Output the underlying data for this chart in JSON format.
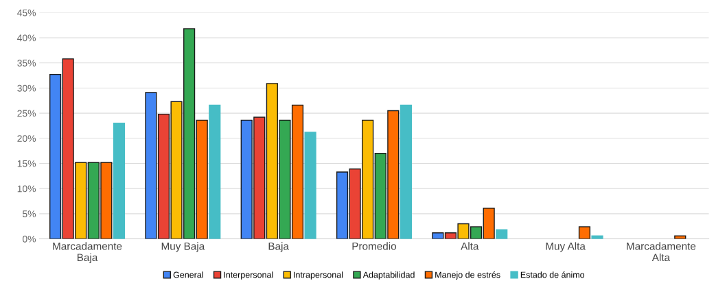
{
  "chart_data": {
    "type": "bar",
    "categories": [
      "Marcadamente\nBaja",
      "Muy Baja",
      "Baja",
      "Promedio",
      "Alta",
      "Muy Alta",
      "Marcadamente\nAlta"
    ],
    "series": [
      {
        "name": "General",
        "color": "#4285f4",
        "values": [
          32.7,
          29.1,
          23.6,
          13.3,
          1.2,
          0,
          0
        ]
      },
      {
        "name": "Interpersonal",
        "color": "#ea4335",
        "values": [
          35.8,
          24.8,
          24.2,
          13.9,
          1.2,
          0,
          0
        ]
      },
      {
        "name": "Intrapersonal",
        "color": "#fbbc04",
        "values": [
          15.2,
          27.3,
          30.9,
          23.6,
          3.0,
          0,
          0
        ]
      },
      {
        "name": "Adaptabilidad",
        "color": "#34a853",
        "values": [
          15.2,
          41.8,
          23.6,
          17.0,
          2.4,
          0,
          0
        ]
      },
      {
        "name": "Manejo de estrés",
        "color": "#ff6d01",
        "values": [
          15.2,
          23.6,
          26.6,
          25.5,
          6.1,
          2.4,
          0.6
        ]
      },
      {
        "name": "Estado de ánimo",
        "color": "#46bdc6",
        "values": [
          23.0,
          26.6,
          21.2,
          26.6,
          1.8,
          0.6,
          0
        ]
      }
    ],
    "ylim": [
      0,
      45
    ],
    "yticks": [
      {
        "value": 0,
        "label": "0%"
      },
      {
        "value": 5,
        "label": "5%"
      },
      {
        "value": 10,
        "label": "10%"
      },
      {
        "value": 15,
        "label": "15%"
      },
      {
        "value": 20,
        "label": "20%"
      },
      {
        "value": 25,
        "label": "25%"
      },
      {
        "value": 30,
        "label": "30%"
      },
      {
        "value": 35,
        "label": "35%"
      },
      {
        "value": 40,
        "label": "40%"
      },
      {
        "value": 45,
        "label": "45%"
      }
    ],
    "grid": "y",
    "legend": "bottom"
  }
}
